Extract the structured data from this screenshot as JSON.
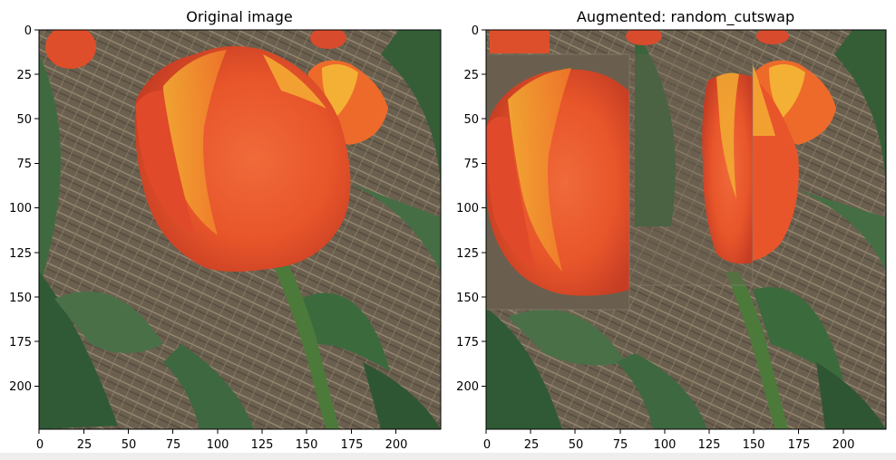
{
  "panels": [
    {
      "title": "Original image",
      "x_ticks": [
        "0",
        "25",
        "50",
        "75",
        "100",
        "125",
        "150",
        "175",
        "200"
      ],
      "y_ticks": [
        "0",
        "25",
        "50",
        "75",
        "100",
        "125",
        "150",
        "175",
        "200"
      ]
    },
    {
      "title": "Augmented: random_cutswap",
      "x_ticks": [
        "0",
        "25",
        "50",
        "75",
        "100",
        "125",
        "150",
        "175",
        "200"
      ],
      "y_ticks": [
        "0",
        "25",
        "50",
        "75",
        "100",
        "125",
        "150",
        "175",
        "200"
      ]
    }
  ],
  "colors": {
    "ground": "#6f6453",
    "leaf": "#3f6a3f",
    "petal_orange": "#e8552a",
    "petal_yellow": "#f3b233",
    "stem": "#4b7a3a"
  }
}
